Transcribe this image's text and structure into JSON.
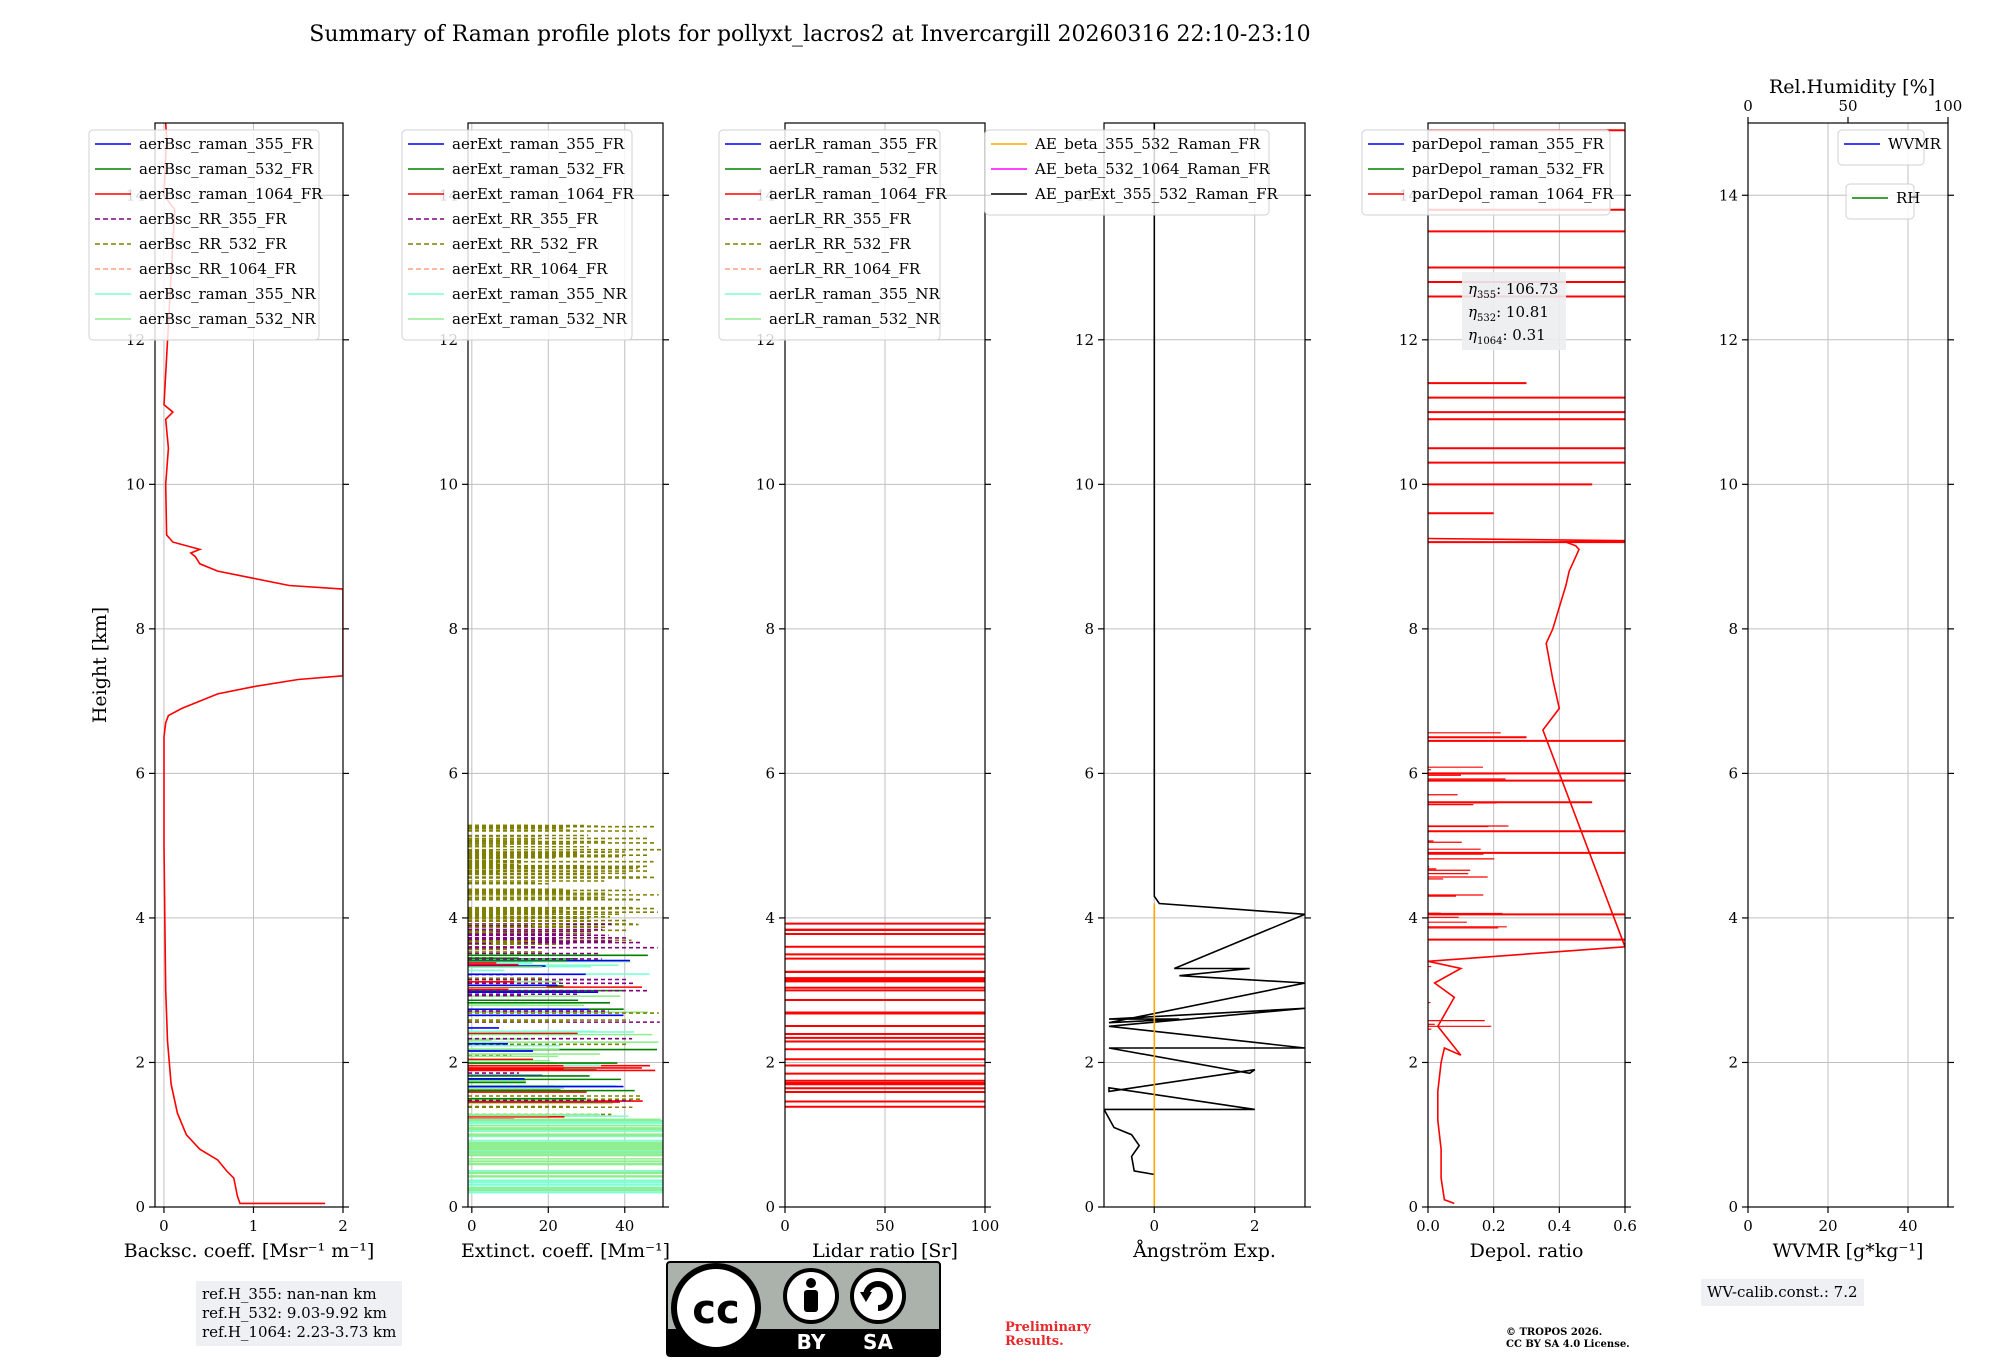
{
  "title": "Summary of Raman profile plots for pollyxt_lacros2 at Invercargill 20260316 22:10-23:10",
  "ylabel": "Height [km]",
  "colors": {
    "blue": "#0000ff",
    "green": "#008000",
    "red": "#ff0000",
    "purple": "#800080",
    "olive": "#808000",
    "salmon": "#ffa07a",
    "cyan": "#7fffd4",
    "lightgreen": "#90ee90",
    "orange": "#ffa500",
    "magenta": "#ff00ff",
    "black": "#000000",
    "grid": "#c0c0c0"
  },
  "chart_data": [
    {
      "type": "line",
      "id": "backscatter",
      "xlabel": "Backsc. coeff. [Msr⁻¹ m⁻¹]",
      "ylabel": "Height [km]",
      "xlim": [
        -0.1,
        2.0
      ],
      "ylim": [
        0,
        15
      ],
      "xticks": [
        0,
        1,
        2
      ],
      "xtick_labels": [
        "0",
        "1",
        "2"
      ],
      "yticks": [
        0,
        2,
        4,
        6,
        8,
        10,
        12,
        14
      ],
      "ytick_labels": [
        "0",
        "2",
        "4",
        "6",
        "8",
        "10",
        "12",
        "14"
      ],
      "legend": [
        "aerBsc_raman_355_FR",
        "aerBsc_raman_532_FR",
        "aerBsc_raman_1064_FR",
        "aerBsc_RR_355_FR",
        "aerBsc_RR_532_FR",
        "aerBsc_RR_1064_FR",
        "aerBsc_raman_355_NR",
        "aerBsc_raman_532_NR"
      ],
      "legend_colors": [
        "blue",
        "green",
        "red",
        "purple",
        "olive",
        "salmon",
        "cyan",
        "lightgreen"
      ],
      "legend_dashed": [
        false,
        false,
        false,
        true,
        true,
        true,
        false,
        false
      ],
      "series": [
        {
          "name": "aerBsc_raman_1064_FR",
          "color": "red",
          "x": [
            1.8,
            0.85,
            0.82,
            0.78,
            0.7,
            0.6,
            0.4,
            0.25,
            0.15,
            0.08,
            0.04,
            0.02,
            0.01,
            0.0,
            0.0,
            0.0,
            0.01,
            0.02,
            0.05,
            0.2,
            0.6,
            1.0,
            1.5,
            2.0,
            2.0,
            1.4,
            1.0,
            0.6,
            0.4,
            0.35,
            0.3,
            0.4,
            0.1,
            0.03,
            0.02,
            0.05,
            0.02,
            0.1,
            0.0,
            0.12,
            0.0,
            0.03,
            0.02
          ],
          "y": [
            0.05,
            0.05,
            0.15,
            0.4,
            0.5,
            0.65,
            0.8,
            1.0,
            1.3,
            1.7,
            2.3,
            3.0,
            4.0,
            5.0,
            6.0,
            6.5,
            6.6,
            6.7,
            6.8,
            6.9,
            7.1,
            7.2,
            7.3,
            7.35,
            8.55,
            8.6,
            8.7,
            8.8,
            8.9,
            9.0,
            9.05,
            9.1,
            9.2,
            9.3,
            10.0,
            10.5,
            10.9,
            11.0,
            11.1,
            13.8,
            14.0,
            14.8,
            15.0
          ]
        }
      ]
    },
    {
      "type": "line",
      "id": "extinction",
      "xlabel": "Extinct. coeff. [Mm⁻¹]",
      "xlim": [
        -1,
        50
      ],
      "ylim": [
        0,
        15
      ],
      "xticks": [
        0,
        20,
        40
      ],
      "xtick_labels": [
        "0",
        "20",
        "40"
      ],
      "yticks": [
        0,
        2,
        4,
        6,
        8,
        10,
        12,
        14
      ],
      "ytick_labels": [
        "0",
        "2",
        "4",
        "6",
        "8",
        "10",
        "12",
        "14"
      ],
      "legend": [
        "aerExt_raman_355_FR",
        "aerExt_raman_532_FR",
        "aerExt_raman_1064_FR",
        "aerExt_RR_355_FR",
        "aerExt_RR_532_FR",
        "aerExt_RR_1064_FR",
        "aerExt_raman_355_NR",
        "aerExt_raman_532_NR"
      ],
      "legend_colors": [
        "blue",
        "green",
        "red",
        "purple",
        "olive",
        "salmon",
        "cyan",
        "lightgreen"
      ],
      "legend_dashed": [
        false,
        false,
        false,
        true,
        true,
        true,
        false,
        false
      ],
      "noise_region": [
        0.2,
        5.3
      ]
    },
    {
      "type": "line",
      "id": "lidar-ratio",
      "xlabel": "Lidar ratio [Sr]",
      "xlim": [
        0,
        100
      ],
      "ylim": [
        0,
        15
      ],
      "xticks": [
        0,
        50,
        100
      ],
      "xtick_labels": [
        "0",
        "50",
        "100"
      ],
      "yticks": [
        0,
        2,
        4,
        6,
        8,
        10,
        12,
        14
      ],
      "ytick_labels": [
        "0",
        "2",
        "4",
        "6",
        "8",
        "10",
        "12",
        "14"
      ],
      "legend": [
        "aerLR_raman_355_FR",
        "aerLR_raman_532_FR",
        "aerLR_raman_1064_FR",
        "aerLR_RR_355_FR",
        "aerLR_RR_532_FR",
        "aerLR_RR_1064_FR",
        "aerLR_raman_355_NR",
        "aerLR_raman_532_NR"
      ],
      "legend_colors": [
        "blue",
        "green",
        "red",
        "purple",
        "olive",
        "salmon",
        "cyan",
        "lightgreen"
      ],
      "legend_dashed": [
        false,
        false,
        false,
        true,
        true,
        true,
        false,
        false
      ],
      "noise_region": [
        1.3,
        4.0
      ]
    },
    {
      "type": "line",
      "id": "angstrom",
      "xlabel": "Ångström Exp.",
      "xlim": [
        -1,
        3
      ],
      "ylim": [
        0,
        15
      ],
      "xticks": [
        0,
        2
      ],
      "xtick_labels": [
        "0",
        "2"
      ],
      "yticks": [
        0,
        2,
        4,
        6,
        8,
        10,
        12,
        14
      ],
      "ytick_labels": [
        "0",
        "2",
        "4",
        "6",
        "8",
        "10",
        "12",
        "14"
      ],
      "legend": [
        "AE_beta_355_532_Raman_FR",
        "AE_beta_532_1064_Raman_FR",
        "AE_parExt_355_532_Raman_FR"
      ],
      "legend_colors": [
        "orange",
        "magenta",
        "black"
      ],
      "legend_dashed": [
        false,
        false,
        false
      ],
      "series": [
        {
          "name": "AE_parExt_355_532_Raman_FR",
          "color": "black",
          "x": [
            0.0,
            -0.4,
            -0.45,
            -0.3,
            -0.45,
            -0.8,
            -1.0,
            2.0,
            -0.9,
            -0.9,
            2.0,
            1.9,
            -0.9,
            3.0,
            -0.9,
            3.0,
            -0.9,
            0.5,
            -0.9,
            3.0,
            0.5,
            1.9,
            0.4,
            3.0,
            0.1,
            0.0,
            0.0
          ],
          "y": [
            0.45,
            0.5,
            0.7,
            0.85,
            1.0,
            1.1,
            1.35,
            1.35,
            1.65,
            1.6,
            1.9,
            1.85,
            2.2,
            2.2,
            2.5,
            2.75,
            2.6,
            2.6,
            2.55,
            3.1,
            3.2,
            3.3,
            3.3,
            4.05,
            4.2,
            4.3,
            15.0
          ]
        },
        {
          "name": "AE_beta_355_532_Raman_FR",
          "color": "orange",
          "x": [
            0.0,
            0.0
          ],
          "y": [
            0.0,
            4.2
          ]
        }
      ]
    },
    {
      "type": "line",
      "id": "depol",
      "xlabel": "Depol. ratio",
      "xlim": [
        0,
        0.6
      ],
      "ylim": [
        0,
        15
      ],
      "xticks": [
        0.0,
        0.2,
        0.4,
        0.6
      ],
      "xtick_labels": [
        "0.0",
        "0.2",
        "0.4",
        "0.6"
      ],
      "yticks": [
        0,
        2,
        4,
        6,
        8,
        10,
        12,
        14
      ],
      "ytick_labels": [
        "0",
        "2",
        "4",
        "6",
        "8",
        "10",
        "12",
        "14"
      ],
      "legend": [
        "parDepol_raman_355_FR",
        "parDepol_raman_532_FR",
        "parDepol_raman_1064_FR"
      ],
      "legend_colors": [
        "blue",
        "green",
        "red"
      ],
      "legend_dashed": [
        false,
        false,
        false
      ],
      "annotation": {
        "eta_355": "106.73",
        "eta_532": "10.81",
        "eta_1064": "0.31"
      },
      "series": [
        {
          "name": "parDepol_raman_1064_FR",
          "color": "red",
          "x": [
            0.08,
            0.05,
            0.04,
            0.04,
            0.03,
            0.03,
            0.04,
            0.05,
            0.1,
            0.03,
            0.08,
            0.02,
            0.1,
            0.0,
            0.6,
            0.35,
            0.4,
            0.38,
            0.36,
            0.38,
            0.4,
            0.42,
            0.43,
            0.45,
            0.46,
            0.45,
            0.42,
            0.4,
            0.6,
            0.0
          ],
          "y": [
            0.05,
            0.1,
            0.4,
            0.8,
            1.2,
            1.6,
            2.0,
            2.2,
            2.1,
            2.5,
            2.9,
            3.1,
            3.3,
            3.4,
            3.6,
            6.6,
            6.9,
            7.3,
            7.8,
            8.0,
            8.3,
            8.6,
            8.8,
            9.0,
            9.1,
            9.15,
            9.2,
            9.2,
            9.22,
            9.25
          ]
        }
      ]
    },
    {
      "type": "line",
      "id": "wvmr",
      "xlabel": "WVMR [g*kg⁻¹]",
      "xlim": [
        0,
        50
      ],
      "ylim": [
        0,
        15
      ],
      "xticks": [
        0,
        20,
        40
      ],
      "xtick_labels": [
        "0",
        "20",
        "40"
      ],
      "yticks": [
        0,
        2,
        4,
        6,
        8,
        10,
        12,
        14
      ],
      "ytick_labels": [
        "0",
        "2",
        "4",
        "6",
        "8",
        "10",
        "12",
        "14"
      ],
      "top_xlabel": "Rel.Humidity [%]",
      "top_xlim": [
        0,
        100
      ],
      "top_xticks": [
        0,
        50,
        100
      ],
      "top_xtick_labels": [
        "0",
        "50",
        "100"
      ],
      "legend": [
        "WVMR"
      ],
      "legend_colors": [
        "blue"
      ],
      "legend_dashed": [
        false
      ],
      "legend2": [
        "RH"
      ],
      "legend2_colors": [
        "green"
      ]
    }
  ],
  "info": {
    "refH_355": "ref.H_355: nan-nan km",
    "refH_532": "ref.H_532: 9.03-9.92 km",
    "refH_1064": "ref.H_1064: 2.23-3.73 km",
    "wv_calib": "WV-calib.const.: 7.2",
    "preliminary_1": "Preliminary",
    "preliminary_2": "Results.",
    "copyright_1": "© TROPOS 2026.",
    "copyright_2": "CC BY SA 4.0 License.",
    "cc_by": "BY",
    "cc_sa": "SA"
  }
}
